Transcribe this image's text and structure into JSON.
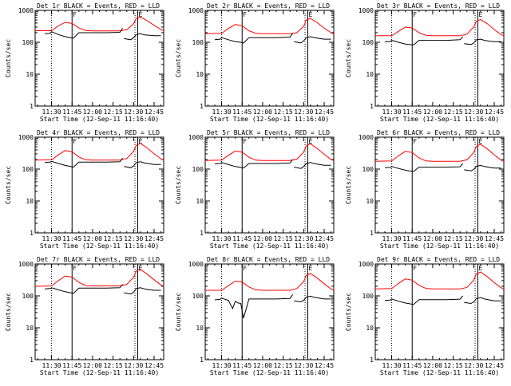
{
  "chart_data": {
    "type": "line",
    "shared": {
      "xlabel": "Start Time (12-Sep-11 11:16:40)",
      "ylabel": "Counts/sec",
      "xlim_minutes_after_1130": [
        -12,
        82
      ],
      "ylim": [
        1,
        1000
      ],
      "log_y": true,
      "x_tick_labels": [
        "11:30",
        "11:45",
        "12:00",
        "12:15",
        "12:30",
        "12:45"
      ],
      "x_tick_minutes_after_1130": [
        0,
        15,
        30,
        45,
        60,
        75
      ],
      "y_tick_labels": [
        "1",
        "10",
        "100",
        "1000"
      ],
      "y_tick_values": [
        1,
        10,
        100,
        1000
      ],
      "markers": [
        {
          "x": 0,
          "style": "dotted",
          "label": ""
        },
        {
          "x": 15,
          "style": "solid",
          "label": "F"
        },
        {
          "x": 61,
          "style": "dotted",
          "label": ""
        },
        {
          "x": 63,
          "style": "solid",
          "label": "E"
        }
      ],
      "series_colors": {
        "events": "#000000",
        "lld": "#ff0000"
      }
    },
    "panels": [
      {
        "title": "Det 1r BLACK = Events, RED = LLD",
        "lld": {
          "x": [
            -12,
            0,
            5,
            10,
            15,
            20,
            25,
            30,
            40,
            50,
            55,
            60,
            62,
            65,
            70,
            75,
            80,
            82
          ],
          "y": [
            230,
            230,
            330,
            420,
            390,
            280,
            235,
            228,
            228,
            228,
            250,
            380,
            560,
            620,
            470,
            340,
            250,
            230
          ]
        },
        "events": [
          {
            "x": [
              -5,
              -1,
              0,
              5,
              10,
              14,
              16,
              20,
              30,
              40,
              50,
              52
            ],
            "y": [
              185,
              190,
              215,
              175,
              150,
              140,
              135,
              200,
              200,
              200,
              205,
              275
            ]
          },
          {
            "x": [
              53,
              58,
              60,
              62,
              65,
              68,
              72,
              75,
              80
            ],
            "y": [
              130,
              120,
              140,
              175,
              185,
              170,
              165,
              160,
              160
            ]
          }
        ]
      },
      {
        "title": "Det 2r BLACK = Events, RED = LLD",
        "lld": {
          "x": [
            -12,
            0,
            5,
            10,
            15,
            20,
            25,
            30,
            40,
            50,
            55,
            60,
            62,
            65,
            70,
            75,
            80,
            82
          ],
          "y": [
            185,
            190,
            270,
            360,
            330,
            230,
            190,
            185,
            185,
            185,
            200,
            320,
            500,
            560,
            410,
            280,
            200,
            180
          ]
        },
        "events": [
          {
            "x": [
              -5,
              -1,
              0,
              5,
              10,
              14,
              16,
              20,
              30,
              40,
              50,
              52
            ],
            "y": [
              120,
              125,
              140,
              120,
              105,
              100,
              95,
              140,
              140,
              140,
              145,
              190
            ]
          },
          {
            "x": [
              53,
              58,
              60,
              62,
              65,
              68,
              72,
              75,
              80
            ],
            "y": [
              105,
              95,
              110,
              140,
              150,
              140,
              130,
              125,
              125
            ]
          }
        ]
      },
      {
        "title": "Det 3r BLACK = Events, RED = LLD",
        "lld": {
          "x": [
            -12,
            0,
            5,
            10,
            15,
            20,
            25,
            30,
            40,
            50,
            55,
            60,
            62,
            65,
            70,
            75,
            80,
            82
          ],
          "y": [
            160,
            160,
            220,
            300,
            280,
            200,
            165,
            160,
            160,
            160,
            180,
            300,
            460,
            520,
            380,
            250,
            175,
            160
          ]
        },
        "events": [
          {
            "x": [
              -5,
              -1,
              0,
              5,
              10,
              14,
              16,
              20,
              30,
              40,
              50,
              52
            ],
            "y": [
              105,
              105,
              115,
              100,
              88,
              84,
              82,
              115,
              115,
              115,
              120,
              150
            ]
          },
          {
            "x": [
              53,
              58,
              60,
              62,
              65,
              68,
              72,
              75,
              80
            ],
            "y": [
              90,
              85,
              95,
              120,
              125,
              115,
              108,
              105,
              105
            ]
          }
        ]
      },
      {
        "title": "Det 4r BLACK = Events, RED = LLD",
        "lld": {
          "x": [
            -12,
            0,
            5,
            10,
            15,
            20,
            25,
            30,
            40,
            50,
            55,
            60,
            62,
            65,
            70,
            75,
            80,
            82
          ],
          "y": [
            190,
            195,
            280,
            380,
            350,
            240,
            195,
            190,
            190,
            190,
            215,
            360,
            560,
            640,
            460,
            300,
            210,
            190
          ]
        },
        "events": [
          {
            "x": [
              -5,
              -1,
              0,
              5,
              10,
              14,
              16,
              20,
              30,
              40,
              50,
              52
            ],
            "y": [
              160,
              165,
              175,
              150,
              130,
              120,
              115,
              165,
              165,
              165,
              170,
              220
            ]
          },
          {
            "x": [
              53,
              58,
              60,
              62,
              65,
              68,
              72,
              75,
              80
            ],
            "y": [
              120,
              110,
              125,
              160,
              170,
              155,
              145,
              140,
              140
            ]
          }
        ]
      },
      {
        "title": "Det 5r BLACK = Events, RED = LLD",
        "lld": {
          "x": [
            -12,
            0,
            5,
            10,
            15,
            20,
            25,
            30,
            40,
            50,
            55,
            60,
            62,
            65,
            70,
            75,
            80,
            82
          ],
          "y": [
            185,
            190,
            270,
            370,
            340,
            235,
            190,
            185,
            185,
            185,
            205,
            340,
            540,
            620,
            440,
            290,
            200,
            185
          ]
        },
        "events": [
          {
            "x": [
              -5,
              -1,
              0,
              5,
              10,
              14,
              16,
              20,
              30,
              40,
              50,
              52
            ],
            "y": [
              145,
              150,
              160,
              138,
              120,
              112,
              108,
              150,
              150,
              150,
              155,
              200
            ]
          },
          {
            "x": [
              53,
              58,
              60,
              62,
              65,
              68,
              72,
              75,
              80
            ],
            "y": [
              115,
              105,
              120,
              150,
              160,
              148,
              138,
              132,
              132
            ]
          }
        ]
      },
      {
        "title": "Det 6r BLACK = Events, RED = LLD",
        "lld": {
          "x": [
            -12,
            0,
            5,
            10,
            15,
            20,
            25,
            30,
            40,
            50,
            55,
            60,
            62,
            65,
            70,
            75,
            80,
            82
          ],
          "y": [
            175,
            180,
            260,
            360,
            330,
            225,
            180,
            175,
            175,
            175,
            195,
            330,
            520,
            600,
            430,
            280,
            190,
            175
          ]
        },
        "events": [
          {
            "x": [
              -5,
              -1,
              0,
              5,
              10,
              14,
              16,
              20,
              30,
              40,
              50,
              52
            ],
            "y": [
              110,
              112,
              120,
              105,
              92,
              86,
              84,
              115,
              115,
              115,
              118,
              150
            ]
          },
          {
            "x": [
              53,
              58,
              60,
              62,
              65,
              68,
              72,
              75,
              80
            ],
            "y": [
              95,
              88,
              98,
              122,
              130,
              120,
              112,
              108,
              108
            ]
          }
        ]
      },
      {
        "title": "Det 7r BLACK = Events, RED = LLD",
        "lld": {
          "x": [
            -12,
            0,
            5,
            10,
            15,
            20,
            25,
            30,
            40,
            50,
            55,
            60,
            62,
            65,
            70,
            75,
            80,
            82
          ],
          "y": [
            200,
            205,
            300,
            420,
            390,
            265,
            210,
            205,
            205,
            205,
            230,
            380,
            600,
            680,
            480,
            320,
            220,
            200
          ]
        },
        "events": [
          {
            "x": [
              -5,
              -1,
              0,
              5,
              10,
              14,
              16,
              20,
              30,
              40,
              50,
              52
            ],
            "y": [
              165,
              170,
              180,
              155,
              135,
              125,
              120,
              175,
              175,
              175,
              180,
              230
            ]
          },
          {
            "x": [
              53,
              58,
              60,
              62,
              65,
              68,
              72,
              75,
              80
            ],
            "y": [
              125,
              115,
              130,
              170,
              180,
              165,
              155,
              150,
              150
            ]
          }
        ]
      },
      {
        "title": "Det 8r BLACK = Events, RED = LLD",
        "lld": {
          "x": [
            -12,
            0,
            5,
            10,
            15,
            20,
            25,
            30,
            40,
            50,
            55,
            60,
            62,
            65,
            70,
            75,
            80,
            82
          ],
          "y": [
            150,
            150,
            210,
            290,
            270,
            190,
            155,
            150,
            150,
            150,
            170,
            280,
            440,
            500,
            360,
            240,
            165,
            150
          ]
        },
        "events": [
          {
            "x": [
              -5,
              -1,
              0,
              5,
              8,
              10,
              12,
              14,
              16,
              20,
              30,
              40,
              50,
              52
            ],
            "y": [
              75,
              78,
              85,
              72,
              40,
              68,
              60,
              58,
              20,
              80,
              80,
              80,
              83,
              110
            ]
          },
          {
            "x": [
              53,
              58,
              60,
              62,
              65,
              68,
              72,
              75,
              80
            ],
            "y": [
              70,
              65,
              72,
              92,
              98,
              90,
              84,
              80,
              80
            ]
          }
        ]
      },
      {
        "title": "Det 9r BLACK = Events, RED = LLD",
        "lld": {
          "x": [
            -12,
            0,
            5,
            10,
            15,
            20,
            25,
            30,
            40,
            50,
            55,
            60,
            62,
            65,
            70,
            75,
            80,
            82
          ],
          "y": [
            165,
            170,
            245,
            340,
            310,
            215,
            172,
            165,
            165,
            165,
            185,
            310,
            490,
            560,
            400,
            260,
            180,
            165
          ]
        },
        "events": [
          {
            "x": [
              -5,
              -1,
              0,
              5,
              10,
              14,
              16,
              20,
              30,
              40,
              50,
              52
            ],
            "y": [
              72,
              74,
              80,
              68,
              60,
              56,
              54,
              76,
              76,
              76,
              79,
              100
            ]
          },
          {
            "x": [
              53,
              58,
              60,
              62,
              65,
              68,
              72,
              75,
              80
            ],
            "y": [
              62,
              58,
              65,
              82,
              88,
              80,
              74,
              70,
              70
            ]
          }
        ]
      }
    ]
  }
}
